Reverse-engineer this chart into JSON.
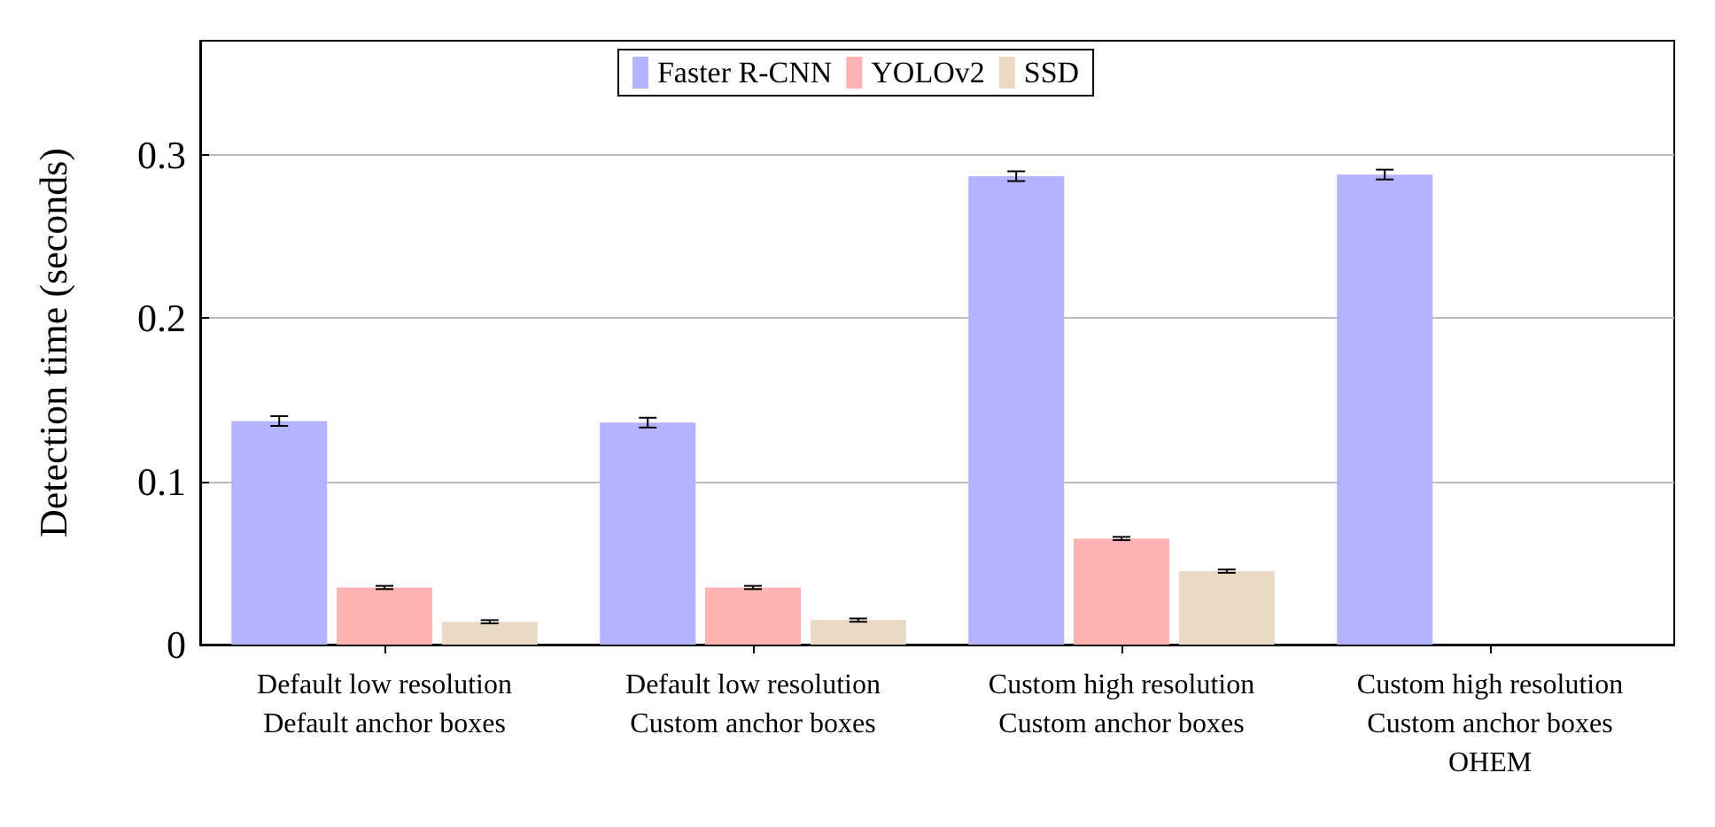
{
  "chart_data": {
    "type": "bar",
    "ylabel": "Detection time (seconds)",
    "categories": [
      "Default low resolution\nDefault anchor boxes",
      "Default low resolution\nCustom anchor boxes",
      "Custom high resolution\nCustom anchor boxes",
      "Custom high resolution\nCustom anchor boxes\nOHEM"
    ],
    "series": [
      {
        "name": "Faster R-CNN",
        "color": "#b3b3ff",
        "values": [
          0.137,
          0.136,
          0.287,
          0.288
        ],
        "errors": [
          0.003,
          0.003,
          0.003,
          0.003
        ]
      },
      {
        "name": "YOLOv2",
        "color": "#ffb3b3",
        "values": [
          0.035,
          0.035,
          0.065,
          null
        ],
        "errors": [
          0.001,
          0.001,
          0.001,
          null
        ]
      },
      {
        "name": "SSD",
        "color": "#ead9c4",
        "values": [
          0.014,
          0.015,
          0.045,
          null
        ],
        "errors": [
          0.001,
          0.001,
          0.001,
          null
        ]
      }
    ],
    "ylim": [
      0,
      0.37
    ],
    "yticks": [
      0,
      0.1,
      0.2,
      0.3
    ],
    "grid": "y",
    "legend": "top"
  }
}
